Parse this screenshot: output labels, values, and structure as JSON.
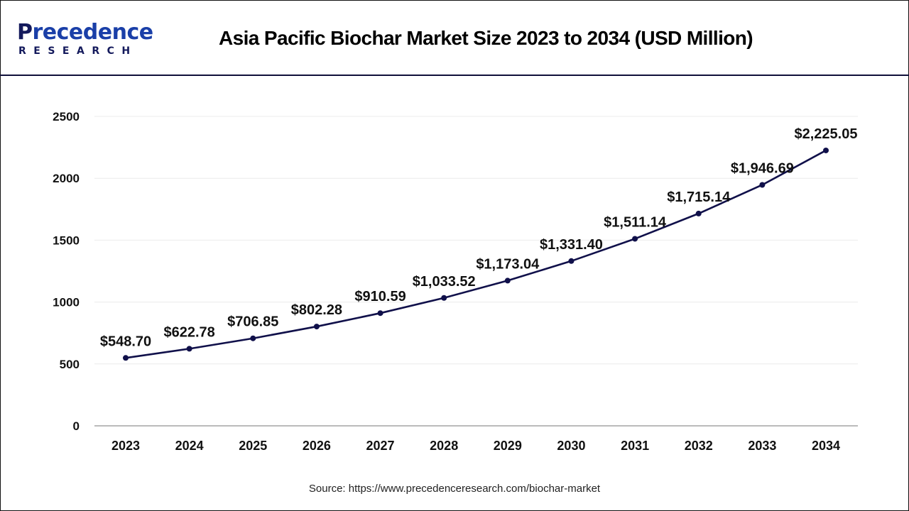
{
  "header": {
    "logo": {
      "main": "recedence",
      "initial": "P",
      "sub": "RESEARCH"
    },
    "title": "Asia Pacific Biochar Market Size 2023 to 2034 (USD Million)"
  },
  "footer": {
    "source": "Source: https://www.precedenceresearch.com/biochar-market"
  },
  "colors": {
    "line": "#10104a",
    "grid": "#ececec",
    "axis": "#bbbbbb",
    "header_rule": "#10103a",
    "logo_dark": "#141a5c",
    "logo_blue": "#1a3fa8"
  },
  "chart_data": {
    "type": "line",
    "title": "Asia Pacific Biochar Market Size 2023 to 2034 (USD Million)",
    "xlabel": "",
    "ylabel": "",
    "categories": [
      "2023",
      "2024",
      "2025",
      "2026",
      "2027",
      "2028",
      "2029",
      "2030",
      "2031",
      "2032",
      "2033",
      "2034"
    ],
    "series": [
      {
        "name": "Asia Pacific Biochar Market Size (USD Million)",
        "values": [
          548.7,
          622.78,
          706.85,
          802.28,
          910.59,
          1033.52,
          1173.04,
          1331.4,
          1511.14,
          1715.14,
          1946.69,
          2225.05
        ],
        "labels": [
          "$548.70",
          "$622.78",
          "$706.85",
          "$802.28",
          "$910.59",
          "$1,033.52",
          "$1,173.04",
          "$1,331.40",
          "$1,511.14",
          "$1,715.14",
          "$1,946.69",
          "$2,225.05"
        ]
      }
    ],
    "ylim": [
      0,
      2500
    ],
    "yticks": [
      0,
      500,
      1000,
      1500,
      2000,
      2500
    ],
    "grid": true,
    "legend": "none",
    "markers": true,
    "data_labels": true
  }
}
